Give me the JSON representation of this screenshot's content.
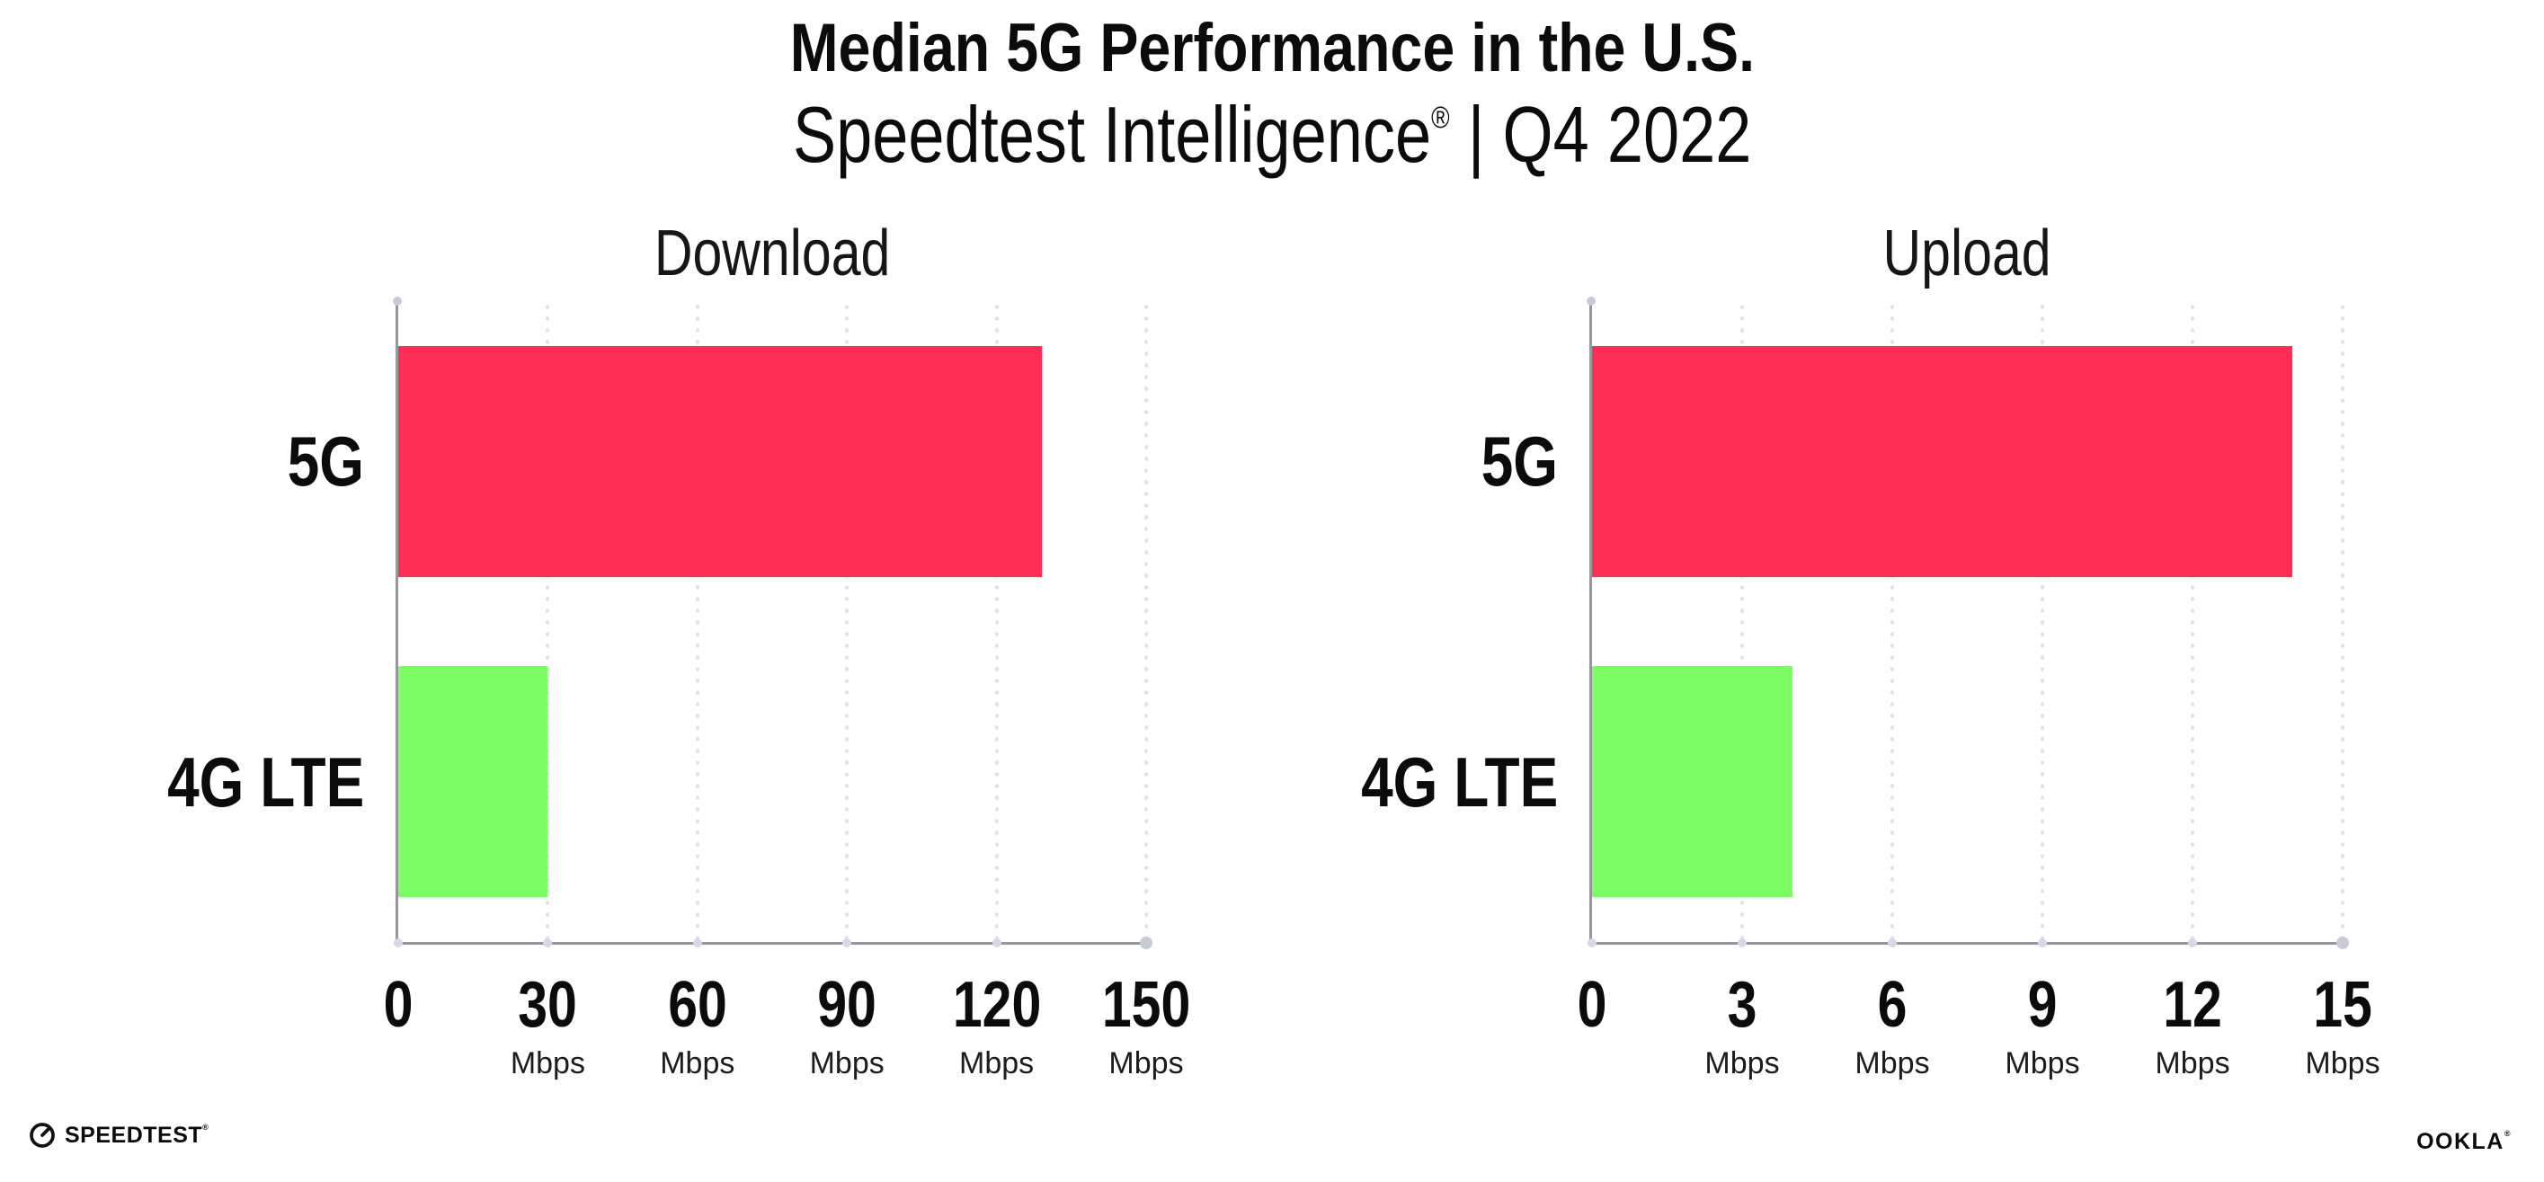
{
  "header": {
    "title": "Median 5G Performance in the U.S.",
    "subtitle_product": "Speedtest Intelligence",
    "subtitle_reg": "®",
    "subtitle_period": "| Q4 2022"
  },
  "footer": {
    "speedtest_icon": "speedometer-gauge-icon",
    "speedtest_wordmark": "SPEEDTEST",
    "speedtest_reg": "®",
    "ookla_wordmark": "OOKLA",
    "ookla_reg": "®"
  },
  "colors": {
    "bar_5g": "#FF2E56",
    "bar_4g_lte": "#7CFD65",
    "axis": "#97979B",
    "gridline": "#E0E1ED",
    "tick_dot": "#D8D9E5",
    "axis_cap_dot": "#C9CAD7",
    "text": "#0B0B0C",
    "background": "#FFFFFF"
  },
  "chart_data": [
    {
      "type": "bar",
      "orientation": "horizontal",
      "title": "Download",
      "categories": [
        "5G",
        "4G LTE"
      ],
      "values": [
        129,
        30
      ],
      "unit": "Mbps",
      "xlim": [
        0,
        150
      ],
      "xticks": [
        0,
        30,
        60,
        90,
        120,
        150
      ],
      "tick_unit_label": "Mbps",
      "bar_colors": [
        "#FF2E56",
        "#7CFD65"
      ],
      "grid": "dotted-vertical-gridlines",
      "legend": "none",
      "data_labels": "none"
    },
    {
      "type": "bar",
      "orientation": "horizontal",
      "title": "Upload",
      "categories": [
        "5G",
        "4G LTE"
      ],
      "values": [
        14,
        4
      ],
      "unit": "Mbps",
      "xlim": [
        0,
        15
      ],
      "xticks": [
        0,
        3,
        6,
        9,
        12,
        15
      ],
      "tick_unit_label": "Mbps",
      "bar_colors": [
        "#FF2E56",
        "#7CFD65"
      ],
      "grid": "dotted-vertical-gridlines",
      "legend": "none",
      "data_labels": "none"
    }
  ]
}
